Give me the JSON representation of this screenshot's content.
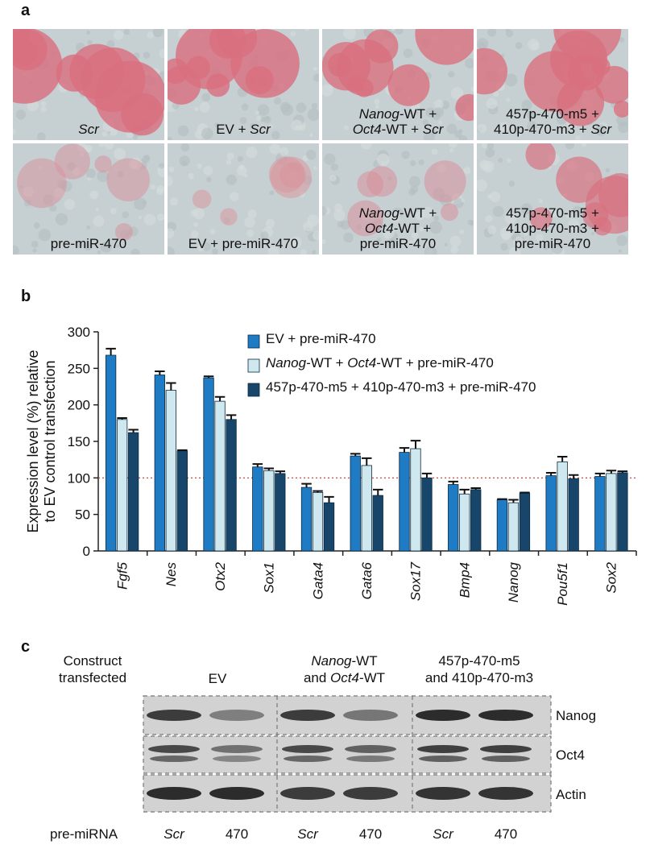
{
  "panel_a": {
    "letter": "a",
    "tiles": [
      {
        "caption_html": "<span class='it'>Scr</span>",
        "caption_text": "Scr",
        "pink": 0.85
      },
      {
        "caption_html": "EV + <span class='it'>Scr</span>",
        "caption_text": "EV + Scr",
        "pink": 0.85
      },
      {
        "caption_html": "<span class='it'>Nanog</span>-WT +<br><span class='it'>Oct4</span>-WT + <span class='it'>Scr</span>",
        "caption_text": "Nanog-WT + Oct4-WT + Scr",
        "pink": 0.8
      },
      {
        "caption_html": "457p-470-m5 +<br>410p-470-m3 + <span class='it'>Scr</span>",
        "caption_text": "457p-470-m5 + 410p-470-m3 + Scr",
        "pink": 0.8
      },
      {
        "caption_html": "pre-miR-470",
        "caption_text": "pre-miR-470",
        "pink": 0.3
      },
      {
        "caption_html": "EV + pre-miR-470",
        "caption_text": "EV + pre-miR-470",
        "pink": 0.25
      },
      {
        "caption_html": "<span class='it'>Nanog</span>-WT +<br><span class='it'>Oct4</span>-WT +<br>pre-miR-470",
        "caption_text": "Nanog-WT + Oct4-WT + pre-miR-470",
        "pink": 0.35
      },
      {
        "caption_html": "457p-470-m5 +<br>410p-470-m3 +<br>pre-miR-470",
        "caption_text": "457p-470-m5 + 410p-470-m3 + pre-miR-470",
        "pink": 0.6
      }
    ]
  },
  "panel_b": {
    "letter": "b",
    "legend_html": [
      "EV + pre-miR-470",
      "<span class='it'>Nanog</span>-WT + <span class='it'>Oct4</span>-WT + pre-miR-470",
      "457p-470-m5 + 410p-470-m3 + pre-miR-470"
    ]
  },
  "chart_data": {
    "type": "bar",
    "ylabel": "Expression level (%) relative to EV control transfection",
    "ylabel_line1": "Expression level (%) relative",
    "ylabel_line2": "to EV control transfection",
    "ylim": [
      0,
      300
    ],
    "yticks": [
      0,
      50,
      100,
      150,
      200,
      250,
      300
    ],
    "reference_line": 100,
    "categories": [
      "Fgf5",
      "Nes",
      "Otx2",
      "Sox1",
      "Gata4",
      "Gata6",
      "Sox17",
      "Bmp4",
      "Nanog",
      "Pou5f1",
      "Sox2"
    ],
    "series": [
      {
        "name": "EV + pre-miR-470",
        "color": "#1f7bc4",
        "values": [
          268,
          241,
          237,
          115,
          87,
          130,
          135,
          91,
          70,
          103,
          102
        ],
        "errors": [
          9,
          5,
          2,
          4,
          5,
          3,
          6,
          4,
          1,
          4,
          4
        ]
      },
      {
        "name": "Nanog-WT + Oct4-WT + pre-miR-470",
        "color": "#cfe8ef",
        "values": [
          180,
          220,
          205,
          110,
          80,
          117,
          140,
          78,
          66,
          122,
          106
        ],
        "errors": [
          2,
          10,
          6,
          3,
          2,
          10,
          11,
          6,
          4,
          7,
          4
        ]
      },
      {
        "name": "457p-470-m5 + 410p-470-m3 + pre-miR-470",
        "color": "#17466a",
        "values": [
          162,
          137,
          180,
          106,
          66,
          76,
          100,
          84,
          79,
          99,
          107
        ],
        "errors": [
          4,
          1,
          6,
          3,
          8,
          8,
          6,
          2,
          1,
          5,
          2
        ]
      }
    ]
  },
  "panel_c": {
    "letter": "c",
    "construct_line1": "Construct",
    "construct_line2": "transfected",
    "group_ev": "EV",
    "group_nanog_html": "<span class='it'>Nanog</span>-WT<br>and <span class='it'>Oct4</span>-WT",
    "group_mut_line1": "457p-470-m5",
    "group_mut_line2": "and 410p-470-m3",
    "band_labels": [
      "Nanog",
      "Oct4",
      "Actin"
    ],
    "premirna_label": "pre-miRNA",
    "lanes": [
      "Scr",
      "470",
      "Scr",
      "470",
      "Scr",
      "470"
    ],
    "lanes_italic": [
      true,
      false,
      true,
      false,
      true,
      false
    ],
    "nanog_intensity": [
      0.85,
      0.45,
      0.85,
      0.5,
      0.95,
      0.95
    ],
    "oct4_intensity": [
      0.8,
      0.55,
      0.8,
      0.65,
      0.85,
      0.85
    ],
    "actin_intensity": [
      0.95,
      0.95,
      0.85,
      0.85,
      0.9,
      0.9
    ]
  }
}
